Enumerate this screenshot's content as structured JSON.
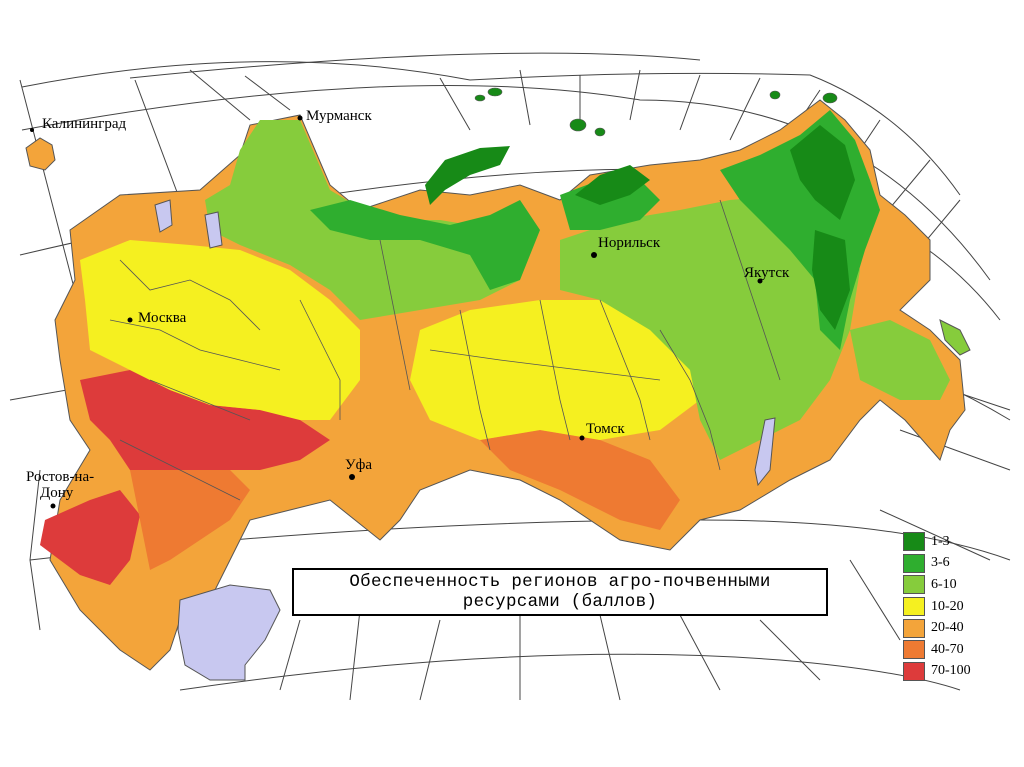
{
  "map": {
    "cities": [
      {
        "id": "kaliningrad",
        "name": "Калининград"
      },
      {
        "id": "murmansk",
        "name": "Мурманск"
      },
      {
        "id": "moskva",
        "name": "Москва"
      },
      {
        "id": "norilsk",
        "name": "Норильск"
      },
      {
        "id": "yakutsk",
        "name": "Якутск"
      },
      {
        "id": "ufa",
        "name": "Уфа"
      },
      {
        "id": "tomsk",
        "name": "Томск"
      },
      {
        "id": "rostov",
        "name_line1": "Ростов-на-",
        "name_line2": "Дону"
      }
    ]
  },
  "title": {
    "line1": "Обеспеченность регионов агро-почвенными",
    "line2": "ресурсами (баллов)"
  },
  "legend": {
    "items": [
      {
        "label": "1-3",
        "color": "#178a17"
      },
      {
        "label": "3-6",
        "color": "#2fae2f"
      },
      {
        "label": "6-10",
        "color": "#86cc3c"
      },
      {
        "label": "10-20",
        "color": "#f5f020"
      },
      {
        "label": "20-40",
        "color": "#f3a43a"
      },
      {
        "label": "40-70",
        "color": "#ee7a32"
      },
      {
        "label": "70-100",
        "color": "#dd3b3b"
      }
    ]
  },
  "colors": {
    "water": "#c8c8f0",
    "grid": "#444444",
    "borders": "#555555"
  }
}
